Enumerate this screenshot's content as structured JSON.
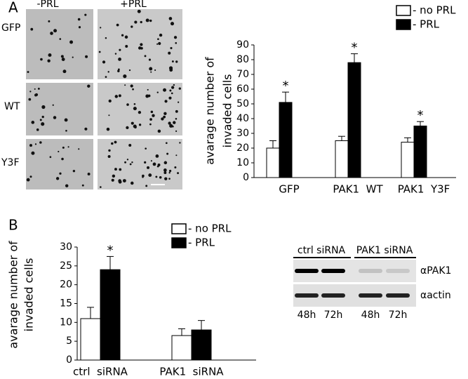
{
  "panel_labels": [
    "A",
    "B"
  ],
  "micrographs": {
    "columns": [
      "-PRL",
      "+PRL"
    ],
    "rows": [
      "GFP",
      "WT",
      "Y3F"
    ]
  },
  "blot": {
    "groups": [
      "ctrl siRNA",
      "PAK1 siRNA"
    ],
    "rows": [
      "αPAK1",
      "αactin"
    ],
    "lanes": [
      "48h",
      "72h",
      "48h",
      "72h"
    ]
  },
  "chart_data": [
    {
      "type": "bar",
      "ylabel": [
        "avarage number of",
        "invaded cells"
      ],
      "categories": [
        "GFP",
        "PAK1  WT",
        "PAK1  Y3F"
      ],
      "series": [
        {
          "name": "- no PRL",
          "color": "#ffffff",
          "values": [
            20,
            25,
            24
          ],
          "errors": [
            5,
            3,
            3
          ]
        },
        {
          "name": "- PRL",
          "color": "#000000",
          "values": [
            51,
            78,
            35
          ],
          "errors": [
            7,
            6,
            3
          ],
          "annotations": [
            "*",
            "*",
            "*"
          ]
        }
      ],
      "ylim": [
        0,
        90
      ],
      "yticks": [
        0,
        10,
        20,
        30,
        40,
        50,
        60,
        70,
        80,
        90
      ]
    },
    {
      "type": "bar",
      "ylabel": [
        "avarage number of",
        "invaded cells"
      ],
      "categories": [
        "ctrl  siRNA",
        "PAK1  siRNA"
      ],
      "series": [
        {
          "name": "- no PRL",
          "color": "#ffffff",
          "values": [
            11,
            6.5
          ],
          "errors": [
            3,
            1.8
          ]
        },
        {
          "name": "- PRL",
          "color": "#000000",
          "values": [
            24,
            8
          ],
          "errors": [
            3.5,
            2.5
          ],
          "annotations": [
            "*",
            null
          ]
        }
      ],
      "ylim": [
        0,
        30
      ],
      "yticks": [
        0,
        5,
        10,
        15,
        20,
        25,
        30
      ]
    }
  ]
}
